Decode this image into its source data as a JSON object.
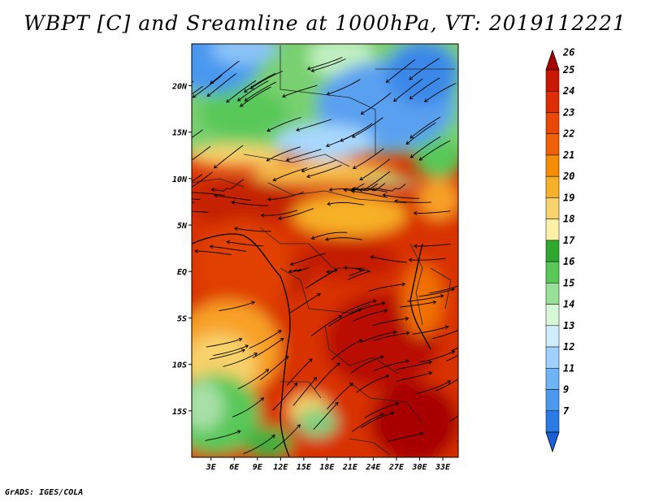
{
  "title": "WBPT [C] and Sreamline at 1000hPa, VT: 2019112221",
  "footer": "GrADS: IGES/COLA",
  "map": {
    "lat_labels": [
      "20N",
      "15N",
      "10N",
      "5N",
      "EQ",
      "5S",
      "10S",
      "15S"
    ],
    "lat_values": [
      20,
      15,
      10,
      5,
      0,
      -5,
      -10,
      -15
    ],
    "lon_labels": [
      "3E",
      "6E",
      "9E",
      "12E",
      "15E",
      "18E",
      "21E",
      "24E",
      "27E",
      "30E",
      "33E"
    ],
    "lon_values": [
      3,
      6,
      9,
      12,
      15,
      18,
      21,
      24,
      27,
      30,
      33
    ],
    "lon_range": [
      0.5,
      35
    ],
    "lat_range": [
      -20,
      24.5
    ]
  },
  "colorbar": {
    "labels": [
      "26",
      "25",
      "24",
      "23",
      "22",
      "21",
      "20",
      "19",
      "18",
      "17",
      "16",
      "15",
      "14",
      "13",
      "12",
      "11",
      "9",
      "7"
    ],
    "colors": [
      "#a80000",
      "#c81800",
      "#dc2e00",
      "#e84800",
      "#f06000",
      "#f88c00",
      "#f8b028",
      "#f8d26a",
      "#fff0a8",
      "#2ea82e",
      "#58c858",
      "#98e098",
      "#d8f8d8",
      "#d0ecff",
      "#a0d0ff",
      "#70b4f8",
      "#4a98f0",
      "#2a7ae8",
      "#1a60d8"
    ]
  }
}
